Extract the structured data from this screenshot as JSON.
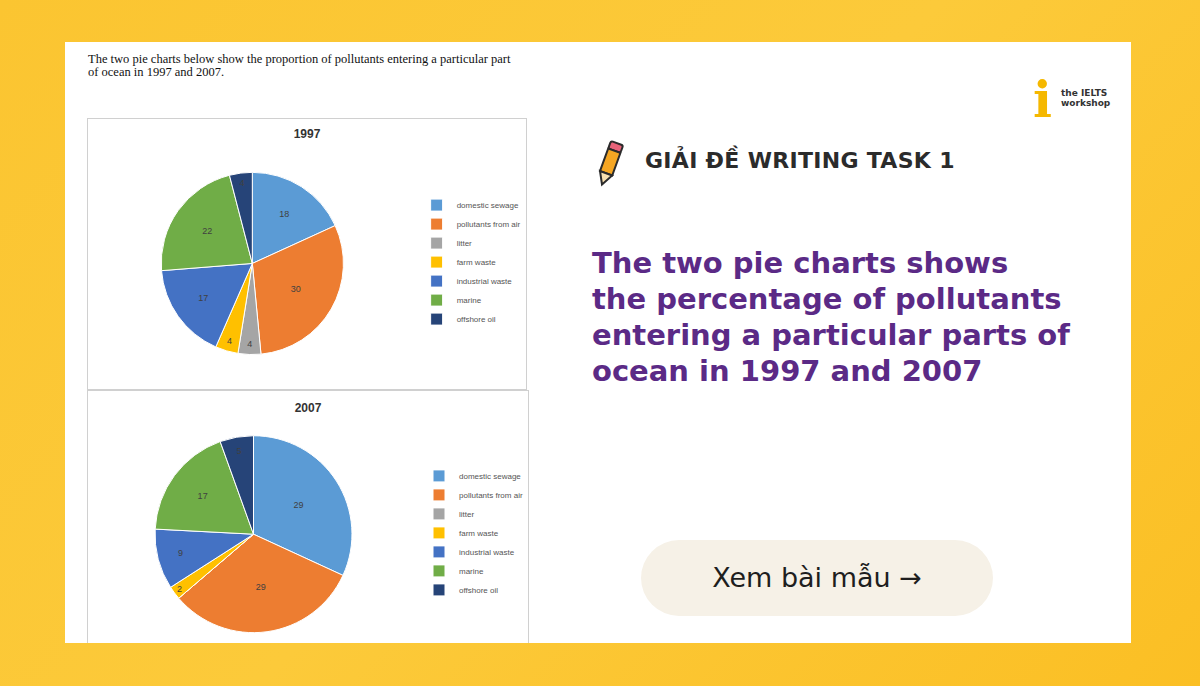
{
  "chart_data": [
    {
      "type": "pie",
      "title": "1997",
      "categories": [
        "domestic sewage",
        "pollutants from air",
        "litter",
        "farm waste",
        "industrial waste",
        "marine",
        "offshore oil"
      ],
      "values": [
        18,
        30,
        4,
        4,
        17,
        22,
        4
      ],
      "colors": [
        "#5b9bd5",
        "#ed7d31",
        "#a5a5a5",
        "#ffc000",
        "#4472c4",
        "#70ad47",
        "#264478"
      ],
      "data_labels": true,
      "legend": "right"
    },
    {
      "type": "pie",
      "title": "2007",
      "categories": [
        "domestic sewage",
        "pollutants from air",
        "litter",
        "farm waste",
        "industrial waste",
        "marine",
        "offshore oil"
      ],
      "values": [
        29,
        29,
        0,
        2,
        9,
        17,
        5
      ],
      "colors": [
        "#5b9bd5",
        "#ed7d31",
        "#a5a5a5",
        "#ffc000",
        "#4472c4",
        "#70ad47",
        "#264478"
      ],
      "data_labels": true,
      "legend": "right"
    }
  ],
  "prompt": [
    "The two pie charts below show the proportion of pollutants entering a particular part",
    "of ocean in 1997 and 2007."
  ],
  "banner": {
    "heading": "GIẢI ĐỀ WRITING TASK 1",
    "title": [
      "The two pie charts shows",
      "the percentage of pollutants",
      "entering a particular parts of",
      "ocean in 1997 and 2007"
    ],
    "button": "Xem bài mẫu →",
    "logo": {
      "mark": "i",
      "text": [
        "the IELTS",
        "workshop"
      ]
    }
  }
}
